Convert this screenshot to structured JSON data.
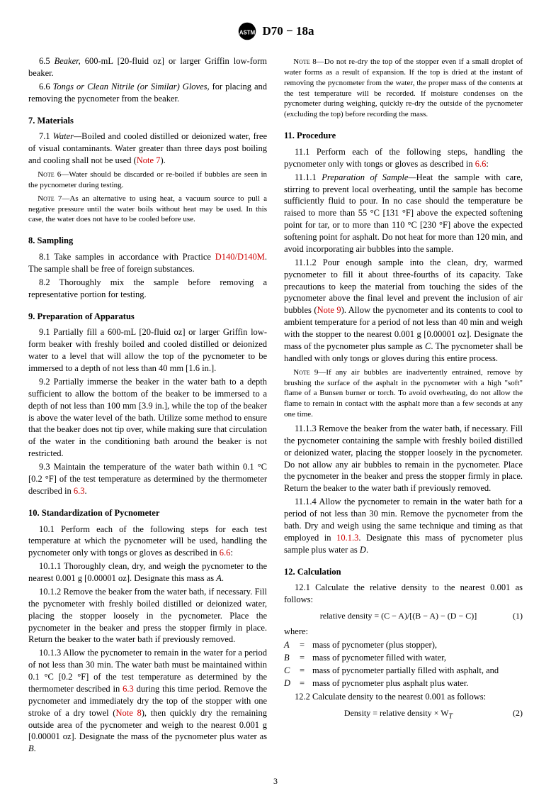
{
  "header": {
    "doc_id": "D70 − 18a"
  },
  "left": {
    "p65": {
      "num": "6.5 ",
      "term": "Beaker,",
      "text": " 600-mL [20-fluid oz] or larger Griffin low-form beaker."
    },
    "p66": {
      "num": "6.6 ",
      "term": "Tongs or Clean Nitrile (or Similar) Gloves,",
      "text": " for placing and removing the pycnometer from the beaker."
    },
    "s7": "7.  Materials",
    "p71": {
      "num": "7.1 ",
      "term": "Water—",
      "text": "Boiled and cooled distilled or deionized water, free of visual contaminants. Water greater than three days post boiling and cooling shall not be used (",
      "ref": "Note 7",
      "tail": ")."
    },
    "n6": {
      "cap": "Note 6—",
      "text": "Water should be discarded or re-boiled if bubbles are seen in the pycnometer during testing."
    },
    "n7": {
      "cap": "Note 7—",
      "text": "As an alternative to using heat, a vacuum source to pull a negative pressure until the water boils without heat may be used. In this case, the water does not have to be cooled before use."
    },
    "s8": "8.  Sampling",
    "p81": {
      "num": "8.1 ",
      "text1": "Take samples in accordance with Practice ",
      "ref": "D140/D140M",
      "text2": ". The sample shall be free of foreign substances."
    },
    "p82": {
      "num": "8.2 ",
      "text": "Thoroughly mix the sample before removing a representative portion for testing."
    },
    "s9": "9.  Preparation of Apparatus",
    "p91": {
      "num": "9.1 ",
      "text": "Partially fill a 600-mL [20-fluid oz] or larger Griffin low-form beaker with freshly boiled and cooled distilled or deionized water to a level that will allow the top of the pycnometer to be immersed to a depth of not less than 40 mm [1.6 in.]."
    },
    "p92": {
      "num": "9.2 ",
      "text": "Partially immerse the beaker in the water bath to a depth sufficient to allow the bottom of the beaker to be immersed to a depth of not less than 100 mm [3.9 in.], while the top of the beaker is above the water level of the bath. Utilize some method to ensure that the beaker does not tip over, while making sure that circulation of the water in the conditioning bath around the beaker is not restricted."
    },
    "p93": {
      "num": "9.3 ",
      "text1": "Maintain the temperature of the water bath within 0.1 °C [0.2 °F] of the test temperature as determined by the thermometer described in ",
      "ref": "6.3",
      "text2": "."
    },
    "s10": "10.  Standardization of Pycnometer",
    "p101": {
      "num": "10.1 ",
      "text1": "Perform each of the following steps for each test temperature at which the pycnometer will be used, handling the pycnometer only with tongs or gloves as described in ",
      "ref": "6.6",
      "text2": ":"
    },
    "p1011": {
      "num": "10.1.1 ",
      "text1": "Thoroughly clean, dry, and weigh the pycnometer to the nearest 0.001 g [0.00001 oz]. Designate this mass as ",
      "var": "A",
      "text2": "."
    },
    "p1012": {
      "num": "10.1.2 ",
      "text": "Remove the beaker from the water bath, if necessary. Fill the pycnometer with freshly boiled distilled or deionized water, placing the stopper loosely in the pycnometer. Place the pycnometer in the beaker and press the stopper firmly in place. Return the beaker to the water bath if previously removed."
    },
    "p1013": {
      "num": "10.1.3 ",
      "text1": "Allow the pycnometer to remain in the water for a period of not less than 30 min. The water bath must be maintained within 0.1 °C [0.2 °F] of the test temperature as determined by the thermometer described in ",
      "ref1": "6.3",
      "text2": " during this time period. Remove the pycnometer and immediately dry the top of the stopper with one stroke of a dry towel (",
      "ref2": "Note 8",
      "text3": "), then quickly dry the remaining outside area of the pycnometer and weigh to the nearest 0.001 g [0.00001 oz]. Designate the mass of the pycnometer plus water as ",
      "var": "B",
      "text4": "."
    }
  },
  "right": {
    "n8": {
      "cap": "Note 8—",
      "text": "Do not re-dry the top of the stopper even if a small droplet of water forms as a result of expansion. If the top is dried at the instant of removing the pycnometer from the water, the proper mass of the contents at the test temperature will be recorded. If moisture condenses on the pycnometer during weighing, quickly re-dry the outside of the pycnometer (excluding the top) before recording the mass."
    },
    "s11": "11.  Procedure",
    "p111": {
      "num": "11.1 ",
      "text1": "Perform each of the following steps, handling the pycnometer only with tongs or gloves as described in ",
      "ref": "6.6",
      "text2": ":"
    },
    "p1111": {
      "num": "11.1.1 ",
      "term": "Preparation of Sample—",
      "text": "Heat the sample with care, stirring to prevent local overheating, until the sample has become sufficiently fluid to pour. In no case should the temperature be raised to more than 55 °C [131 °F] above the expected softening point for tar, or to more than 110 °C [230 °F] above the expected softening point for asphalt. Do not heat for more than 120 min, and avoid incorporating air bubbles into the sample."
    },
    "p1112": {
      "num": "11.1.2 ",
      "text1": "Pour enough sample into the clean, dry, warmed pycnometer to fill it about three-fourths of its capacity. Take precautions to keep the material from touching the sides of the pycnometer above the final level and prevent the inclusion of air bubbles (",
      "ref": "Note 9",
      "text2": "). Allow the pycnometer and its contents to cool to ambient temperature for a period of not less than 40 min and weigh with the stopper to the nearest 0.001 g [0.00001 oz]. Designate the mass of the pycnometer plus sample as ",
      "var": "C",
      "text3": ". The pycnometer shall be handled with only tongs or gloves during this entire process."
    },
    "n9": {
      "cap": "Note 9—",
      "text": "If any air bubbles are inadvertently entrained, remove by brushing the surface of the asphalt in the pycnometer with a high \"soft\" flame of a Bunsen burner or torch. To avoid overheating, do not allow the flame to remain in contact with the asphalt more than a few seconds at any one time."
    },
    "p1113": {
      "num": "11.1.3 ",
      "text": "Remove the beaker from the water bath, if necessary. Fill the pycnometer containing the sample with freshly boiled distilled or deionized water, placing the stopper loosely in the pycnometer. Do not allow any air bubbles to remain in the pycnometer. Place the pycnometer in the beaker and press the stopper firmly in place. Return the beaker to the water bath if previously removed."
    },
    "p1114": {
      "num": "11.1.4 ",
      "text1": "Allow the pycnometer to remain in the water bath for a period of not less than 30 min. Remove the pycnometer from the bath. Dry and weigh using the same technique and timing as that employed in ",
      "ref": "10.1.3",
      "text2": ". Designate this mass of pycnometer plus sample plus water as ",
      "var": "D",
      "text3": "."
    },
    "s12": "12.  Calculation",
    "p121": {
      "num": "12.1 ",
      "text": "Calculate the relative density to the nearest 0.001 as follows:"
    },
    "eq1": {
      "expr": "relative density = (C − A)/[(B − A) − (D − C)]",
      "num": "(1)"
    },
    "where": "where:",
    "vars": [
      {
        "sym": "A",
        "def": "mass of pycnometer (plus stopper),"
      },
      {
        "sym": "B",
        "def": "mass of pycnometer filled with water,"
      },
      {
        "sym": "C",
        "def": "mass of pycnometer partially filled with asphalt, and"
      },
      {
        "sym": "D",
        "def": "mass of pycnometer plus asphalt plus water."
      }
    ],
    "p122": {
      "num": "12.2 ",
      "text": "Calculate density to the nearest 0.001 as follows:"
    },
    "eq2": {
      "expr": "Density = relative density × W",
      "sub": "T",
      "num": "(2)"
    }
  },
  "page_number": "3"
}
